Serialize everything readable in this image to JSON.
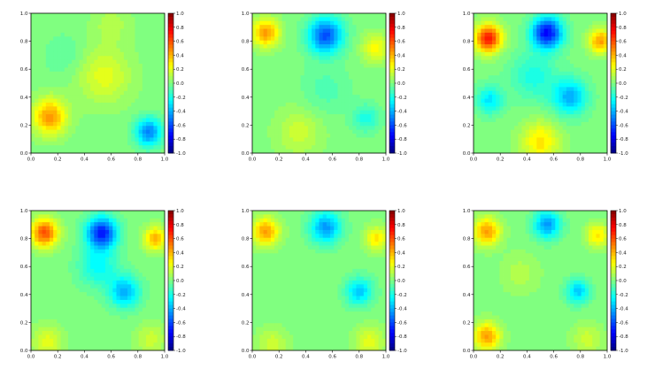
{
  "chart_data": [
    {
      "type": "heatmap",
      "panel": "top-left",
      "xlim": [
        0.0,
        1.0
      ],
      "ylim": [
        0.0,
        1.0
      ],
      "clim": [
        -1.0,
        1.0
      ],
      "colormap": "jet",
      "x_ticks": [
        "0.0",
        "0.2",
        "0.4",
        "0.6",
        "0.8",
        "1.0"
      ],
      "y_ticks": [
        "0.0",
        "0.2",
        "0.4",
        "0.6",
        "0.8",
        "1.0"
      ],
      "colorbar_ticks": [
        "1.0",
        "0.8",
        "0.6",
        "0.4",
        "0.2",
        "0.0",
        "-0.2",
        "-0.4",
        "-0.6",
        "-0.8",
        "-1.0"
      ],
      "features": [
        {
          "x": 0.14,
          "y": 0.26,
          "value": 0.45,
          "spread": 0.09
        },
        {
          "x": 0.55,
          "y": 0.55,
          "value": 0.2,
          "spread": 0.14
        },
        {
          "x": 0.88,
          "y": 0.15,
          "value": -0.5,
          "spread": 0.07
        },
        {
          "x": 0.6,
          "y": 0.92,
          "value": 0.1,
          "spread": 0.1
        },
        {
          "x": 0.25,
          "y": 0.7,
          "value": -0.08,
          "spread": 0.1
        }
      ]
    },
    {
      "type": "heatmap",
      "panel": "top-center",
      "xlim": [
        0.0,
        1.0
      ],
      "ylim": [
        0.0,
        1.0
      ],
      "clim": [
        -1.0,
        1.0
      ],
      "colormap": "jet",
      "x_ticks": [
        "0.0",
        "0.2",
        "0.4",
        "0.6",
        "0.8",
        "1.0"
      ],
      "y_ticks": [
        "0.0",
        "0.2",
        "0.4",
        "0.6",
        "0.8",
        "1.0"
      ],
      "colorbar_ticks": [
        "1.0",
        "0.8",
        "0.6",
        "0.4",
        "0.2",
        "0.0",
        "-0.2",
        "-0.4",
        "-0.6",
        "-0.8",
        "-1.0"
      ],
      "features": [
        {
          "x": 0.1,
          "y": 0.86,
          "value": 0.45,
          "spread": 0.07
        },
        {
          "x": 0.55,
          "y": 0.84,
          "value": -0.6,
          "spread": 0.09
        },
        {
          "x": 0.92,
          "y": 0.75,
          "value": 0.25,
          "spread": 0.07
        },
        {
          "x": 0.85,
          "y": 0.25,
          "value": -0.2,
          "spread": 0.07
        },
        {
          "x": 0.35,
          "y": 0.15,
          "value": 0.15,
          "spread": 0.12
        },
        {
          "x": 0.55,
          "y": 0.45,
          "value": -0.1,
          "spread": 0.12
        }
      ]
    },
    {
      "type": "heatmap",
      "panel": "top-right",
      "xlim": [
        0.0,
        1.0
      ],
      "ylim": [
        0.0,
        1.0
      ],
      "clim": [
        -1.0,
        1.0
      ],
      "colormap": "jet",
      "x_ticks": [
        "0.0",
        "0.2",
        "0.4",
        "0.6",
        "0.8",
        "1.0"
      ],
      "y_ticks": [
        "0.0",
        "0.2",
        "0.4",
        "0.6",
        "0.8",
        "1.0"
      ],
      "colorbar_ticks": [
        "1.0",
        "0.8",
        "0.6",
        "0.4",
        "0.2",
        "0.0",
        "-0.2",
        "-0.4",
        "-0.6",
        "-0.8",
        "-1.0"
      ],
      "features": [
        {
          "x": 0.11,
          "y": 0.82,
          "value": 0.7,
          "spread": 0.07
        },
        {
          "x": 0.55,
          "y": 0.86,
          "value": -0.75,
          "spread": 0.08
        },
        {
          "x": 0.95,
          "y": 0.8,
          "value": 0.45,
          "spread": 0.06
        },
        {
          "x": 0.72,
          "y": 0.4,
          "value": -0.4,
          "spread": 0.09
        },
        {
          "x": 0.12,
          "y": 0.38,
          "value": -0.3,
          "spread": 0.07
        },
        {
          "x": 0.5,
          "y": 0.08,
          "value": 0.3,
          "spread": 0.1
        },
        {
          "x": 0.45,
          "y": 0.55,
          "value": -0.2,
          "spread": 0.12
        }
      ]
    },
    {
      "type": "heatmap",
      "panel": "bottom-left",
      "xlim": [
        0.0,
        1.0
      ],
      "ylim": [
        0.0,
        1.0
      ],
      "clim": [
        -1.0,
        1.0
      ],
      "colormap": "jet",
      "x_ticks": [
        "0.0",
        "0.2",
        "0.4",
        "0.6",
        "0.8",
        "1.0"
      ],
      "y_ticks": [
        "0.0",
        "0.2",
        "0.4",
        "0.6",
        "0.8",
        "1.0"
      ],
      "colorbar_ticks": [
        "1.0",
        "0.8",
        "0.6",
        "0.4",
        "0.2",
        "0.0",
        "-0.2",
        "-0.4",
        "-0.6",
        "-0.8",
        "-1.0"
      ],
      "features": [
        {
          "x": 0.1,
          "y": 0.84,
          "value": 0.6,
          "spread": 0.07
        },
        {
          "x": 0.53,
          "y": 0.84,
          "value": -0.7,
          "spread": 0.08
        },
        {
          "x": 0.93,
          "y": 0.8,
          "value": 0.4,
          "spread": 0.06
        },
        {
          "x": 0.7,
          "y": 0.42,
          "value": -0.4,
          "spread": 0.08
        },
        {
          "x": 0.5,
          "y": 0.6,
          "value": -0.25,
          "spread": 0.1
        },
        {
          "x": 0.12,
          "y": 0.06,
          "value": 0.2,
          "spread": 0.08
        },
        {
          "x": 0.9,
          "y": 0.08,
          "value": 0.15,
          "spread": 0.08
        }
      ]
    },
    {
      "type": "heatmap",
      "panel": "bottom-center",
      "xlim": [
        0.0,
        1.0
      ],
      "ylim": [
        0.0,
        1.0
      ],
      "clim": [
        -1.0,
        1.0
      ],
      "colormap": "jet",
      "x_ticks": [
        "0.0",
        "0.2",
        "0.4",
        "0.6",
        "0.8",
        "1.0"
      ],
      "y_ticks": [
        "0.0",
        "0.2",
        "0.4",
        "0.6",
        "0.8",
        "1.0"
      ],
      "colorbar_ticks": [
        "1.0",
        "0.8",
        "0.6",
        "0.4",
        "0.2",
        "0.0",
        "-0.2",
        "-0.4",
        "-0.6",
        "-0.8",
        "-1.0"
      ],
      "features": [
        {
          "x": 0.1,
          "y": 0.85,
          "value": 0.45,
          "spread": 0.07
        },
        {
          "x": 0.55,
          "y": 0.88,
          "value": -0.45,
          "spread": 0.08
        },
        {
          "x": 0.93,
          "y": 0.8,
          "value": 0.3,
          "spread": 0.06
        },
        {
          "x": 0.8,
          "y": 0.42,
          "value": -0.35,
          "spread": 0.07
        },
        {
          "x": 0.15,
          "y": 0.05,
          "value": 0.15,
          "spread": 0.08
        },
        {
          "x": 0.88,
          "y": 0.06,
          "value": 0.2,
          "spread": 0.08
        }
      ]
    },
    {
      "type": "heatmap",
      "panel": "bottom-right",
      "xlim": [
        0.0,
        1.0
      ],
      "ylim": [
        0.0,
        1.0
      ],
      "clim": [
        -1.0,
        1.0
      ],
      "colormap": "jet",
      "x_ticks": [
        "0.0",
        "0.2",
        "0.4",
        "0.6",
        "0.8",
        "1.0"
      ],
      "y_ticks": [
        "0.0",
        "0.2",
        "0.4",
        "0.6",
        "0.8",
        "1.0"
      ],
      "colorbar_ticks": [
        "1.0",
        "0.8",
        "0.6",
        "0.4",
        "0.2",
        "0.0",
        "-0.2",
        "-0.4",
        "-0.6",
        "-0.8",
        "-1.0"
      ],
      "features": [
        {
          "x": 0.1,
          "y": 0.85,
          "value": 0.45,
          "spread": 0.07
        },
        {
          "x": 0.55,
          "y": 0.9,
          "value": -0.45,
          "spread": 0.07
        },
        {
          "x": 0.93,
          "y": 0.82,
          "value": 0.3,
          "spread": 0.06
        },
        {
          "x": 0.78,
          "y": 0.42,
          "value": -0.35,
          "spread": 0.06
        },
        {
          "x": 0.1,
          "y": 0.1,
          "value": 0.45,
          "spread": 0.07
        },
        {
          "x": 0.85,
          "y": 0.08,
          "value": 0.15,
          "spread": 0.08
        },
        {
          "x": 0.35,
          "y": 0.55,
          "value": 0.1,
          "spread": 0.1
        }
      ]
    }
  ]
}
